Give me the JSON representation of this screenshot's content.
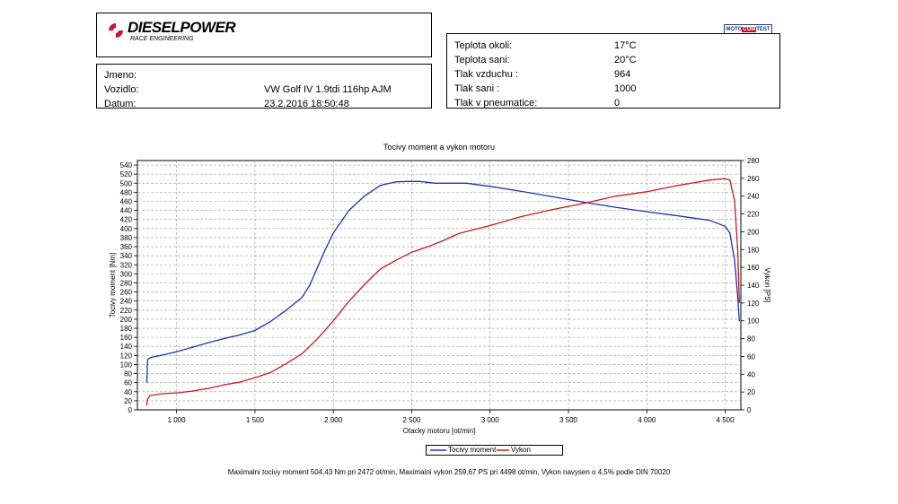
{
  "header": {
    "brand": "DIESELPOWER",
    "brand_subtitle": "RACE ENGINEERING",
    "badge": {
      "left": "MOTO",
      "middle": "COM",
      "right": "TEST"
    }
  },
  "info": {
    "rows": [
      {
        "label": "Jmeno:",
        "value": ""
      },
      {
        "label": "Vozidlo:",
        "value": "VW Golf IV 1.9tdi 116hp AJM"
      },
      {
        "label": "Datum:",
        "value": "23.2.2016 18:50:48"
      }
    ]
  },
  "conditions": {
    "rows": [
      {
        "label": "Teplota okoli:",
        "value": "17°C"
      },
      {
        "label": "Teplota sani:",
        "value": "20°C"
      },
      {
        "label": "Tlak vzduchu :",
        "value": "964"
      },
      {
        "label": "Tlak sani :",
        "value": "1000"
      },
      {
        "label": "Tlak v pneumatice:",
        "value": "0"
      }
    ]
  },
  "chart_data": {
    "type": "line",
    "title": "Tocivy moment a vykon motoru",
    "xlabel": "Otacky motoru [ot/min]",
    "ylabel_left": "Tocivy moment [Nm]",
    "ylabel_right": "Vykon [PS]",
    "xlim": [
      750,
      4600
    ],
    "ylim_left": [
      0,
      550
    ],
    "ylim_right": [
      0,
      280
    ],
    "x_ticks": [
      1000,
      1500,
      2000,
      2500,
      3000,
      3500,
      4000,
      4500
    ],
    "x_tick_labels": [
      "1 000",
      "1 500",
      "2 000",
      "2 500",
      "3 000",
      "3 500",
      "4 000",
      "4 500"
    ],
    "y_left_ticks": [
      0,
      20,
      40,
      60,
      80,
      100,
      120,
      140,
      160,
      180,
      200,
      220,
      240,
      260,
      280,
      300,
      320,
      340,
      360,
      380,
      400,
      420,
      440,
      460,
      480,
      500,
      520,
      540
    ],
    "y_right_ticks": [
      0,
      20,
      40,
      60,
      80,
      100,
      120,
      140,
      160,
      180,
      200,
      220,
      240,
      260,
      280
    ],
    "grid": true,
    "legend_position": "bottom-center",
    "series": [
      {
        "name": "Tocivy moment",
        "color": "#1f2fbf",
        "axis": "left",
        "x": [
          810,
          815,
          830,
          900,
          1000,
          1100,
          1200,
          1300,
          1400,
          1500,
          1600,
          1700,
          1800,
          1850,
          1900,
          1950,
          2000,
          2100,
          2200,
          2300,
          2400,
          2472,
          2550,
          2650,
          2750,
          2850,
          3000,
          3200,
          3400,
          3600,
          3800,
          4000,
          4200,
          4400,
          4500,
          4530,
          4560,
          4580,
          4590
        ],
        "y": [
          60,
          110,
          115,
          120,
          128,
          138,
          148,
          157,
          165,
          175,
          195,
          220,
          248,
          275,
          315,
          355,
          390,
          440,
          472,
          495,
          503,
          504,
          504,
          500,
          500,
          500,
          493,
          482,
          470,
          458,
          447,
          437,
          428,
          418,
          405,
          390,
          330,
          250,
          195
        ]
      },
      {
        "name": "Vykon",
        "color": "#cc1a1a",
        "axis": "right",
        "x": [
          810,
          815,
          830,
          900,
          1000,
          1100,
          1200,
          1300,
          1400,
          1500,
          1600,
          1700,
          1800,
          1900,
          2000,
          2100,
          2200,
          2300,
          2400,
          2500,
          2600,
          2700,
          2800,
          3000,
          3200,
          3400,
          3600,
          3800,
          4000,
          4200,
          4400,
          4498,
          4530,
          4560,
          4580,
          4590
        ],
        "y": [
          5,
          12,
          16,
          18,
          19,
          21,
          24,
          28,
          31,
          36,
          42,
          52,
          63,
          80,
          100,
          122,
          141,
          158,
          168,
          177,
          183,
          190,
          198,
          207,
          217,
          225,
          232,
          240,
          245,
          252,
          258,
          259.67,
          258,
          235,
          180,
          120
        ]
      }
    ]
  },
  "footer": {
    "text": "Maximalni tocivy moment 504,43 Nm pri 2472 ot/min,  Maximalni vykon 259,67 PS pri 4498 ot/min,  Vykon navysen o 4,5% podle DIN 70020"
  }
}
